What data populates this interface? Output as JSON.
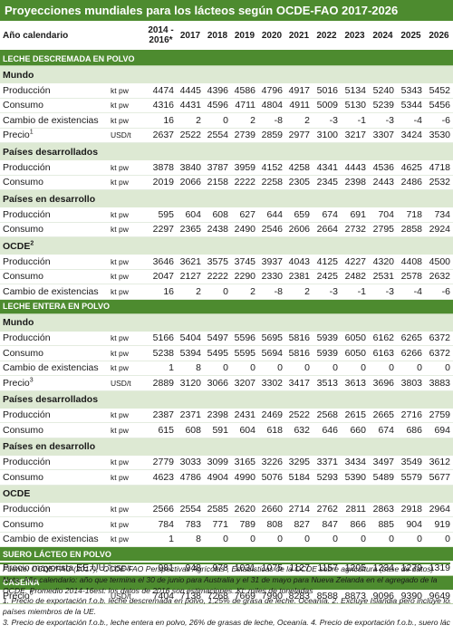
{
  "title": "Proyecciones mundiales para los lácteos según OCDE-FAO 2017-2026",
  "header": {
    "label": "Año calendario",
    "first_year_top": "2014 -",
    "first_year_bottom": "2016*",
    "years": [
      "2017",
      "2018",
      "2019",
      "2020",
      "2021",
      "2022",
      "2023",
      "2024",
      "2025",
      "2026"
    ]
  },
  "sections": [
    {
      "title": "LECHE DESCREMADA EN POLVO",
      "groups": [
        {
          "name": "Mundo",
          "sup": "",
          "rows": [
            {
              "label": "Producción",
              "sup": "",
              "unit": "kt pw",
              "values": [
                "4474",
                "4445",
                "4396",
                "4586",
                "4796",
                "4917",
                "5016",
                "5134",
                "5240",
                "5343",
                "5452"
              ]
            },
            {
              "label": "Consumo",
              "sup": "",
              "unit": "kt pw",
              "values": [
                "4316",
                "4431",
                "4596",
                "4711",
                "4804",
                "4911",
                "5009",
                "5130",
                "5239",
                "5344",
                "5456"
              ]
            },
            {
              "label": "Cambio de existencias",
              "sup": "",
              "unit": "kt pw",
              "values": [
                "16",
                "2",
                "0",
                "2",
                "-8",
                "2",
                "-3",
                "-1",
                "-3",
                "-4",
                "-6"
              ]
            },
            {
              "label": "Precio",
              "sup": "1",
              "unit": "USD/t",
              "values": [
                "2637",
                "2522",
                "2554",
                "2739",
                "2859",
                "2977",
                "3100",
                "3217",
                "3307",
                "3424",
                "3530"
              ]
            }
          ]
        },
        {
          "name": "Países desarrollados",
          "sup": "",
          "rows": [
            {
              "label": "Producción",
              "sup": "",
              "unit": "kt pw",
              "values": [
                "3878",
                "3840",
                "3787",
                "3959",
                "4152",
                "4258",
                "4341",
                "4443",
                "4536",
                "4625",
                "4718"
              ]
            },
            {
              "label": "Consumo",
              "sup": "",
              "unit": "kt pw",
              "values": [
                "2019",
                "2066",
                "2158",
                "2222",
                "2258",
                "2305",
                "2345",
                "2398",
                "2443",
                "2486",
                "2532"
              ]
            }
          ]
        },
        {
          "name": "Países en desarrollo",
          "sup": "",
          "rows": [
            {
              "label": "Producción",
              "sup": "",
              "unit": "kt pw",
              "values": [
                "595",
                "604",
                "608",
                "627",
                "644",
                "659",
                "674",
                "691",
                "704",
                "718",
                "734"
              ]
            },
            {
              "label": "Consumo",
              "sup": "",
              "unit": "kt pw",
              "values": [
                "2297",
                "2365",
                "2438",
                "2490",
                "2546",
                "2606",
                "2664",
                "2732",
                "2795",
                "2858",
                "2924"
              ]
            }
          ]
        },
        {
          "name": "OCDE",
          "sup": "2",
          "rows": [
            {
              "label": "Producción",
              "sup": "",
              "unit": "kt pw",
              "values": [
                "3646",
                "3621",
                "3575",
                "3745",
                "3937",
                "4043",
                "4125",
                "4227",
                "4320",
                "4408",
                "4500"
              ]
            },
            {
              "label": "Consumo",
              "sup": "",
              "unit": "kt pw",
              "values": [
                "2047",
                "2127",
                "2222",
                "2290",
                "2330",
                "2381",
                "2425",
                "2482",
                "2531",
                "2578",
                "2632"
              ]
            },
            {
              "label": "Cambio de existencias",
              "sup": "",
              "unit": "kt pw",
              "values": [
                "16",
                "2",
                "0",
                "2",
                "-8",
                "2",
                "-3",
                "-1",
                "-3",
                "-4",
                "-6"
              ]
            }
          ]
        }
      ]
    },
    {
      "title": "LECHE ENTERA EN POLVO",
      "groups": [
        {
          "name": "Mundo",
          "sup": "",
          "rows": [
            {
              "label": "Producción",
              "sup": "",
              "unit": "kt pw",
              "values": [
                "5166",
                "5404",
                "5497",
                "5596",
                "5695",
                "5816",
                "5939",
                "6050",
                "6162",
                "6265",
                "6372"
              ]
            },
            {
              "label": "Consumo",
              "sup": "",
              "unit": "kt pw",
              "values": [
                "5238",
                "5394",
                "5495",
                "5595",
                "5694",
                "5816",
                "5939",
                "6050",
                "6163",
                "6266",
                "6372"
              ]
            },
            {
              "label": "Cambio de existencias",
              "sup": "",
              "unit": "kt pw",
              "values": [
                "1",
                "8",
                "0",
                "0",
                "0",
                "0",
                "0",
                "0",
                "0",
                "0",
                "0"
              ]
            },
            {
              "label": "Precio",
              "sup": "3",
              "unit": "USD/t",
              "values": [
                "2889",
                "3120",
                "3066",
                "3207",
                "3302",
                "3417",
                "3513",
                "3613",
                "3696",
                "3803",
                "3883"
              ]
            }
          ]
        },
        {
          "name": "Países desarrollados",
          "sup": "",
          "rows": [
            {
              "label": "Producción",
              "sup": "",
              "unit": "kt pw",
              "values": [
                "2387",
                "2371",
                "2398",
                "2431",
                "2469",
                "2522",
                "2568",
                "2615",
                "2665",
                "2716",
                "2759"
              ]
            },
            {
              "label": "Consumo",
              "sup": "",
              "unit": "kt pw",
              "values": [
                "615",
                "608",
                "591",
                "604",
                "618",
                "632",
                "646",
                "660",
                "674",
                "686",
                "694"
              ]
            }
          ]
        },
        {
          "name": "Países en desarrollo",
          "sup": "",
          "rows": [
            {
              "label": "Producción",
              "sup": "",
              "unit": "kt pw",
              "values": [
                "2779",
                "3033",
                "3099",
                "3165",
                "3226",
                "3295",
                "3371",
                "3434",
                "3497",
                "3549",
                "3612"
              ]
            },
            {
              "label": "Consumo",
              "sup": "",
              "unit": "kt pw",
              "values": [
                "4623",
                "4786",
                "4904",
                "4990",
                "5076",
                "5184",
                "5293",
                "5390",
                "5489",
                "5579",
                "5677"
              ]
            }
          ]
        },
        {
          "name": "OCDE",
          "sup": "",
          "rows": [
            {
              "label": "Producción",
              "sup": "",
              "unit": "kt pw",
              "values": [
                "2566",
                "2554",
                "2585",
                "2620",
                "2660",
                "2714",
                "2762",
                "2811",
                "2863",
                "2918",
                "2964"
              ]
            },
            {
              "label": "Consumo",
              "sup": "",
              "unit": "kt pw",
              "values": [
                "784",
                "783",
                "771",
                "789",
                "808",
                "827",
                "847",
                "866",
                "885",
                "904",
                "919"
              ]
            },
            {
              "label": "Cambio de existencias",
              "sup": "",
              "unit": "kt pw",
              "values": [
                "1",
                "8",
                "0",
                "0",
                "0",
                "0",
                "0",
                "0",
                "0",
                "0",
                "0"
              ]
            }
          ]
        }
      ]
    },
    {
      "title": "SUERO LÁCTEO EN POLVO",
      "groups": [
        {
          "name": "",
          "sup": "",
          "rows": [
            {
              "label": "Precio mayorista EE.UU.",
              "sup": "4",
              "unit": "USD/t",
              "values": [
                "981",
                "948",
                "978",
                "1031",
                "1075",
                "1127",
                "1157",
                "1205",
                "1234",
                "1279",
                "1319"
              ]
            }
          ]
        }
      ]
    },
    {
      "title": "CASEÍNA",
      "groups": [
        {
          "name": "",
          "sup": "",
          "rows": [
            {
              "label": "Precio",
              "sup": "5",
              "unit": "USD/t",
              "values": [
                "7404",
                "7138",
                "7268",
                "7669",
                "7990",
                "8283",
                "8588",
                "8873",
                "9096",
                "9390",
                "9649"
              ]
            }
          ]
        }
      ]
    }
  ],
  "notes": [
    "Fuente: OCDE/FAO (2017), “OCDE-FAO Perspectivas Agrícolas”, Estadísticas de la OCDE sobre agricultura (base de datos)",
    "Nota: Año calendario: año que termina el 30 de junio para Australia y el 31 de mayo para Nueva Zelanda en el agregado de la",
    "OCDE. Promedio 2014-16est: los datos de 2016 son estimaciones. Kt: miles de toneladas",
    "1. Precio de exportación f.o.b. leche descremada en polvo, 1,25% de grasa de leche. Oceanía. 2. Excluye Islandia pero incluye los 28",
    "países miembros de la UE.",
    "3. Precio de exportación f.o.b., leche entera en polvo, 26% de grasas de leche, Oceanía. 4. Precio de exportación f.o.b., suero lácteo"
  ]
}
